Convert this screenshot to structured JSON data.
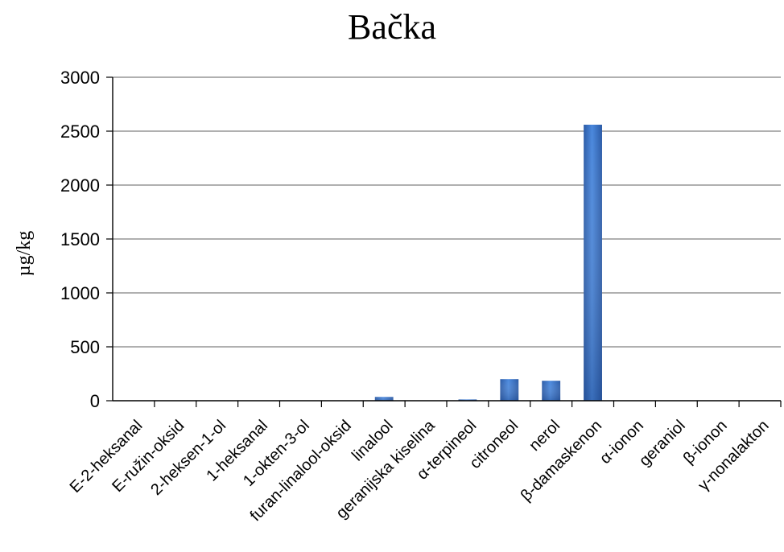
{
  "chart_data": {
    "type": "bar",
    "title": "Bačka",
    "xlabel": "",
    "ylabel": "µg/kg",
    "ylim": [
      0,
      3000
    ],
    "yticks": [
      0,
      500,
      1000,
      1500,
      2000,
      2500,
      3000
    ],
    "grid": true,
    "categories": [
      "E-2-heksanal",
      "E-ružin-oksid",
      "2-heksen-1-ol",
      "1-heksanal",
      "1-okten-3-ol",
      "furan-linalool-oksid",
      "linalool",
      "geranijska kiselina",
      "α-terpineol",
      "citroneol",
      "nerol",
      "β-damaskenon",
      "α-ionon",
      "geraniol",
      "β-ionon",
      "γ-nonalakton"
    ],
    "values": [
      0,
      0,
      0,
      0,
      0,
      0,
      35,
      0,
      12,
      200,
      185,
      2560,
      0,
      0,
      0,
      0
    ]
  },
  "colors": {
    "bar": "#3d78cc",
    "bar_dark": "#2a5aa6",
    "grid": "#808080",
    "axis": "#000000"
  }
}
